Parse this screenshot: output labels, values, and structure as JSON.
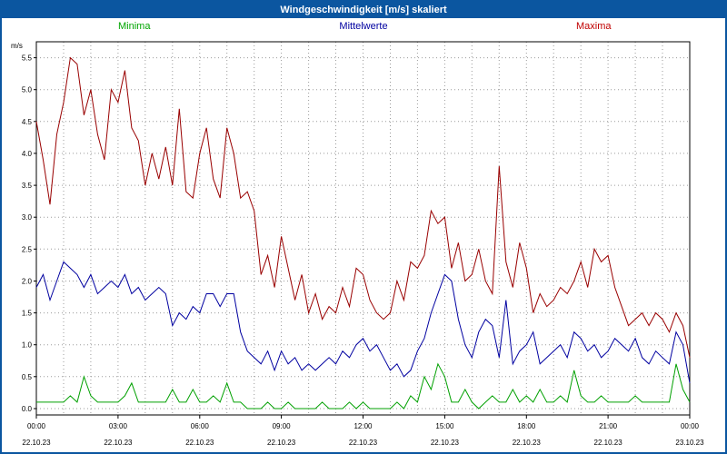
{
  "window": {
    "title": "Windgeschwindigkeit [m/s] skaliert"
  },
  "legend": {
    "minima": "Minima",
    "mittelwerte": "Mittelwerte",
    "maxima": "Maxima"
  },
  "colors": {
    "titlebar": "#0b56a0",
    "page_border": "#0b56a0",
    "grid": "#9b9b9b",
    "axis": "#000000",
    "minima_line": "#00a000",
    "mittelwerte_line": "#0000a0",
    "maxima_line": "#990000",
    "minima_label": "#00a500",
    "mittelwerte_label": "#0000a0",
    "maxima_label": "#c00000"
  },
  "chart_data": {
    "type": "line",
    "title": "Windgeschwindigkeit [m/s] skaliert",
    "xlabel": "",
    "ylabel": "m/s",
    "ylim": [
      -0.1,
      5.75
    ],
    "y_ticks": [
      0.0,
      0.5,
      1.0,
      1.5,
      2.0,
      2.5,
      3.0,
      3.5,
      4.0,
      4.5,
      5.0,
      5.5
    ],
    "x_hours": 24,
    "interval_hours": 0.25,
    "grid": true,
    "legend_position": "top",
    "x_tick_labels": [
      "00:00",
      "03:00",
      "06:00",
      "09:00",
      "12:00",
      "15:00",
      "18:00",
      "21:00",
      "00:00"
    ],
    "x_date_labels": [
      "22.10.23",
      "22.10.23",
      "22.10.23",
      "22.10.23",
      "22.10.23",
      "22.10.23",
      "22.10.23",
      "22.10.23",
      "23.10.23"
    ],
    "series": [
      {
        "name": "Minima",
        "color": "#00a000",
        "values": [
          0.1,
          0.1,
          0.1,
          0.1,
          0.1,
          0.2,
          0.1,
          0.5,
          0.2,
          0.1,
          0.1,
          0.1,
          0.1,
          0.2,
          0.4,
          0.1,
          0.1,
          0.1,
          0.1,
          0.1,
          0.3,
          0.1,
          0.1,
          0.3,
          0.1,
          0.1,
          0.2,
          0.1,
          0.4,
          0.1,
          0.1,
          0.0,
          0.0,
          0.0,
          0.1,
          0.0,
          0.0,
          0.1,
          0.0,
          0.0,
          0.0,
          0.0,
          0.1,
          0.0,
          0.0,
          0.0,
          0.1,
          0.0,
          0.1,
          0.0,
          0.0,
          0.0,
          0.0,
          0.1,
          0.0,
          0.2,
          0.1,
          0.5,
          0.3,
          0.7,
          0.5,
          0.1,
          0.1,
          0.3,
          0.1,
          0.0,
          0.1,
          0.2,
          0.1,
          0.1,
          0.3,
          0.1,
          0.2,
          0.1,
          0.3,
          0.1,
          0.1,
          0.2,
          0.1,
          0.6,
          0.2,
          0.1,
          0.1,
          0.2,
          0.1,
          0.1,
          0.1,
          0.1,
          0.2,
          0.1,
          0.1,
          0.1,
          0.1,
          0.1,
          0.7,
          0.3,
          0.1
        ]
      },
      {
        "name": "Mittelwerte",
        "color": "#0000a0",
        "values": [
          1.9,
          2.1,
          1.7,
          2.0,
          2.3,
          2.2,
          2.1,
          1.9,
          2.1,
          1.8,
          1.9,
          2.0,
          1.9,
          2.1,
          1.8,
          1.9,
          1.7,
          1.8,
          1.9,
          1.8,
          1.3,
          1.5,
          1.4,
          1.6,
          1.5,
          1.8,
          1.8,
          1.6,
          1.8,
          1.8,
          1.2,
          0.9,
          0.8,
          0.7,
          0.9,
          0.6,
          0.9,
          0.7,
          0.8,
          0.6,
          0.7,
          0.6,
          0.7,
          0.8,
          0.7,
          0.9,
          0.8,
          1.0,
          1.1,
          0.9,
          1.0,
          0.8,
          0.6,
          0.7,
          0.5,
          0.6,
          0.9,
          1.1,
          1.5,
          1.8,
          2.1,
          2.0,
          1.4,
          1.0,
          0.8,
          1.2,
          1.4,
          1.3,
          0.8,
          1.7,
          0.7,
          0.9,
          1.0,
          1.2,
          0.7,
          0.8,
          0.9,
          1.0,
          0.8,
          1.2,
          1.1,
          0.9,
          1.0,
          0.8,
          0.9,
          1.1,
          1.0,
          0.9,
          1.1,
          0.8,
          0.7,
          0.9,
          0.8,
          0.7,
          1.2,
          1.0,
          0.4
        ]
      },
      {
        "name": "Maxima",
        "color": "#990000",
        "values": [
          4.5,
          3.9,
          3.2,
          4.3,
          4.8,
          5.5,
          5.4,
          4.6,
          5.0,
          4.3,
          3.9,
          5.0,
          4.8,
          5.3,
          4.4,
          4.2,
          3.5,
          4.0,
          3.6,
          4.1,
          3.5,
          4.7,
          3.4,
          3.3,
          4.0,
          4.4,
          3.6,
          3.3,
          4.4,
          4.0,
          3.3,
          3.4,
          3.1,
          2.1,
          2.4,
          1.9,
          2.7,
          2.2,
          1.7,
          2.1,
          1.5,
          1.8,
          1.4,
          1.6,
          1.5,
          1.9,
          1.6,
          2.2,
          2.1,
          1.7,
          1.5,
          1.4,
          1.5,
          2.0,
          1.7,
          2.3,
          2.2,
          2.4,
          3.1,
          2.9,
          3.0,
          2.2,
          2.6,
          2.0,
          2.1,
          2.5,
          2.0,
          1.8,
          3.8,
          2.3,
          1.9,
          2.6,
          2.2,
          1.5,
          1.8,
          1.6,
          1.7,
          1.9,
          1.8,
          2.0,
          2.3,
          1.9,
          2.5,
          2.3,
          2.4,
          1.9,
          1.6,
          1.3,
          1.4,
          1.5,
          1.3,
          1.5,
          1.4,
          1.2,
          1.5,
          1.3,
          0.8
        ]
      }
    ]
  }
}
